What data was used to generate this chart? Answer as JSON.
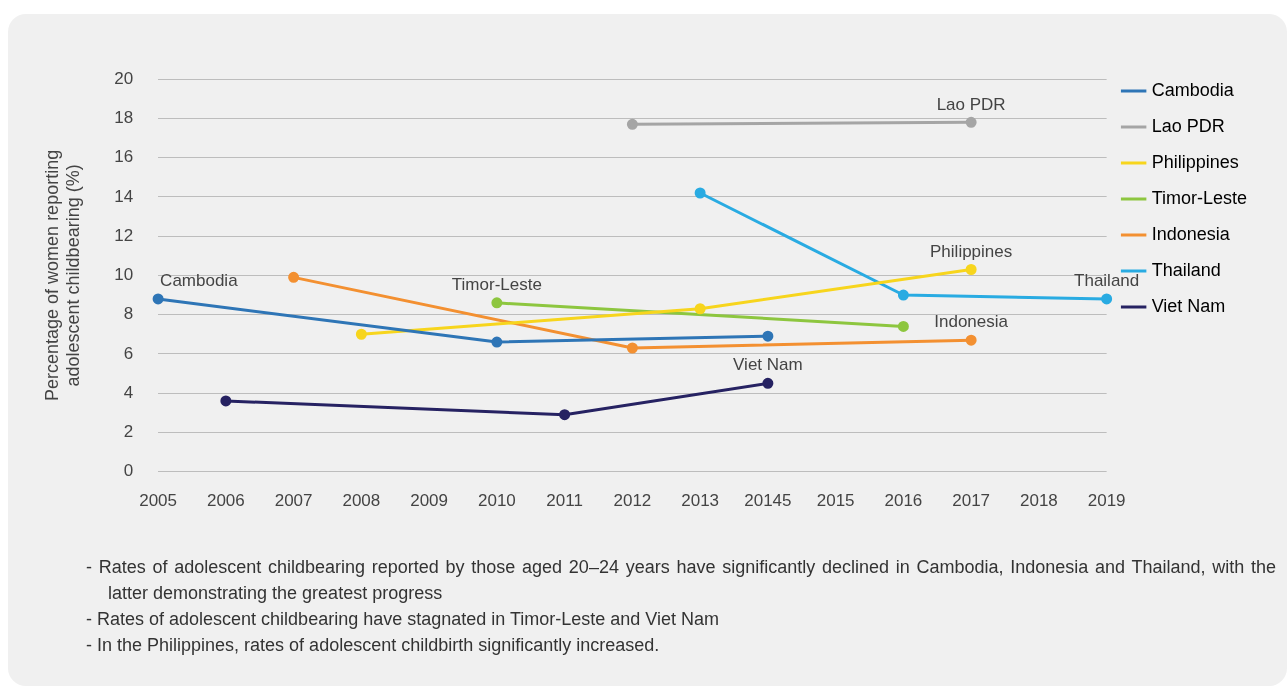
{
  "chart_data": {
    "type": "line",
    "ylabel": "Percentage of women reporting adolescent childbearing (%)",
    "categories": [
      "2005",
      "2006",
      "2007",
      "2008",
      "2009",
      "2010",
      "2011",
      "2012",
      "2013",
      "20145",
      "2015",
      "2016",
      "2017",
      "2018",
      "2019"
    ],
    "series": [
      {
        "name": "Cambodia",
        "color": "#2e75b6",
        "values": [
          8.8,
          null,
          null,
          null,
          null,
          6.6,
          null,
          null,
          null,
          6.9,
          null,
          null,
          null,
          null,
          null
        ]
      },
      {
        "name": "Lao PDR",
        "color": "#a5a5a5",
        "values": [
          null,
          null,
          null,
          null,
          null,
          null,
          null,
          17.7,
          null,
          null,
          null,
          null,
          17.8,
          null,
          null
        ]
      },
      {
        "name": "Philippines",
        "color": "#f7d51d",
        "values": [
          null,
          null,
          null,
          7.0,
          null,
          null,
          null,
          null,
          8.3,
          null,
          null,
          null,
          10.3,
          null,
          null
        ]
      },
      {
        "name": "Timor-Leste",
        "color": "#8dc63f",
        "values": [
          null,
          null,
          null,
          null,
          null,
          8.6,
          null,
          null,
          null,
          null,
          null,
          7.4,
          null,
          null,
          null
        ]
      },
      {
        "name": "Indonesia",
        "color": "#f39031",
        "values": [
          null,
          null,
          9.9,
          null,
          null,
          null,
          null,
          6.3,
          null,
          null,
          null,
          null,
          6.7,
          null,
          null
        ]
      },
      {
        "name": "Thailand",
        "color": "#29abe2",
        "values": [
          null,
          null,
          null,
          null,
          null,
          null,
          null,
          null,
          14.2,
          null,
          null,
          9.0,
          null,
          null,
          8.8
        ]
      },
      {
        "name": "Viet Nam",
        "color": "#262262",
        "values": [
          null,
          3.6,
          null,
          null,
          null,
          null,
          2.9,
          null,
          null,
          4.5,
          null,
          null,
          null,
          null,
          null
        ]
      }
    ],
    "ylim": [
      0,
      20
    ],
    "yticks": [
      0,
      2,
      4,
      6,
      8,
      10,
      12,
      14,
      16,
      18,
      20
    ],
    "grid": "y",
    "legend": "right",
    "marker": "circle",
    "line_style": "solid",
    "annotations": [
      {
        "text": "Cambodia",
        "x": "2005",
        "y": 8.8
      },
      {
        "text": "Lao PDR",
        "x": "2017",
        "y": 17.8
      },
      {
        "text": "Philippines",
        "x": "2017",
        "y": 10.3
      },
      {
        "text": "Thailand",
        "x": "2019",
        "y": 8.8
      },
      {
        "text": "Indonesia",
        "x": "2017",
        "y": 6.7
      },
      {
        "text": "Timor-Leste",
        "x": "2010",
        "y": 8.6
      },
      {
        "text": "Viet Nam",
        "x": "20145",
        "y": 4.5
      },
      "- Rates of adolescent childbearing reported by those aged 20–24 years have significantly declined in Cambodia, Indonesia and Thailand, with the latter demonstrating the greatest progress",
      "- Rates of adolescent childbearing have stagnated in Timor-Leste and Viet Nam",
      "- In the Philippines, rates of adolescent childbirth significantly increased."
    ]
  }
}
